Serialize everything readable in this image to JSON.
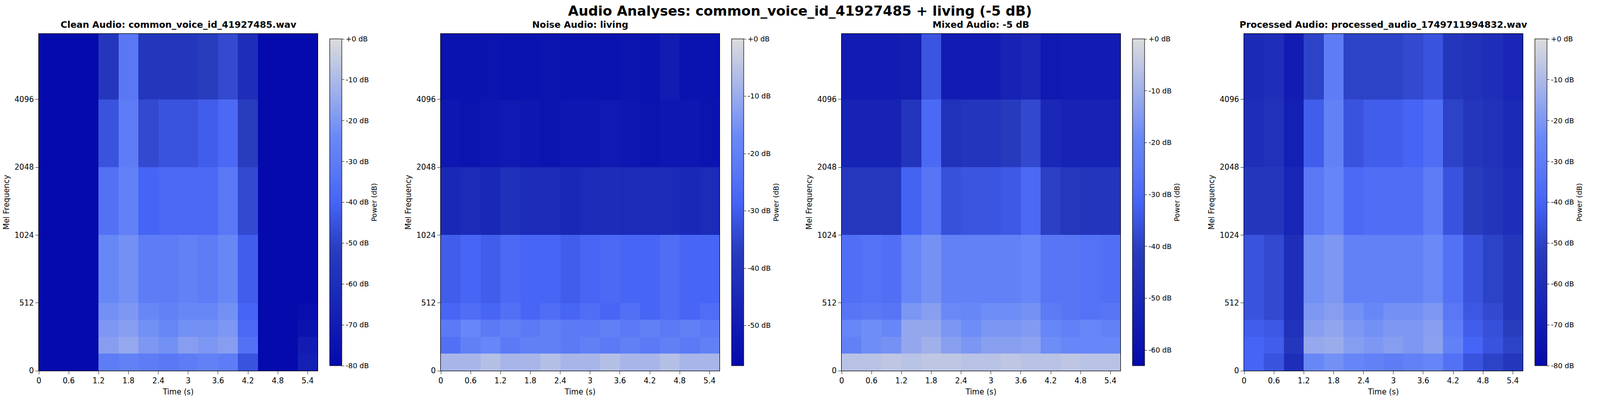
{
  "title": "Audio Analyses: common_voice_id_41927485 + living (-5 dB)",
  "chart_data": [
    {
      "type": "heatmap",
      "title": "Clean Audio: common_voice_id_41927485.wav",
      "x_label": "Time (s)",
      "y_label": "Mel Frequency",
      "color": "Plasma",
      "colorbar_label": "Power (dB)",
      "xlim": [
        0,
        5.6
      ],
      "xticks": [
        0,
        0.6,
        1.2,
        1.8,
        2.4,
        3,
        3.6,
        4.2,
        4.8,
        5.4
      ],
      "ylim": [
        0,
        8000
      ],
      "yticks": [
        0,
        512,
        1024,
        2048,
        4096
      ],
      "x_edges": [
        0,
        0.4,
        0.8,
        1.2,
        1.6,
        2.0,
        2.4,
        2.8,
        3.2,
        3.6,
        4.0,
        4.4,
        4.8,
        5.2,
        5.6
      ],
      "y_edges": [
        0,
        128,
        256,
        384,
        512,
        1024,
        2048,
        4096,
        8000
      ],
      "zlim": [
        -80,
        0
      ],
      "zticks": [
        {
          "value": 0,
          "label": "+0 dB"
        },
        {
          "value": -10,
          "label": "-10 dB"
        },
        {
          "value": -20,
          "label": "-20 dB"
        },
        {
          "value": -30,
          "label": "-30 dB"
        },
        {
          "value": -40,
          "label": "-40 dB"
        },
        {
          "value": -50,
          "label": "-50 dB"
        },
        {
          "value": -60,
          "label": "-60 dB"
        },
        {
          "value": -70,
          "label": "-70 dB"
        },
        {
          "value": -80,
          "label": "-80 dB"
        }
      ],
      "z": [
        [
          -80,
          -80,
          -80,
          -30,
          -28,
          -30,
          -32,
          -30,
          -28,
          -30,
          -45,
          -80,
          -80,
          -68
        ],
        [
          -80,
          -80,
          -80,
          -18,
          -15,
          -20,
          -22,
          -18,
          -20,
          -18,
          -35,
          -80,
          -80,
          -70
        ],
        [
          -80,
          -80,
          -80,
          -20,
          -18,
          -22,
          -25,
          -22,
          -22,
          -20,
          -38,
          -80,
          -80,
          -75
        ],
        [
          -80,
          -80,
          -80,
          -22,
          -20,
          -25,
          -28,
          -25,
          -25,
          -22,
          -40,
          -80,
          -80,
          -78
        ],
        [
          -80,
          -80,
          -80,
          -25,
          -22,
          -30,
          -30,
          -28,
          -30,
          -25,
          -42,
          -80,
          -80,
          -80
        ],
        [
          -80,
          -80,
          -80,
          -35,
          -28,
          -40,
          -38,
          -38,
          -38,
          -32,
          -48,
          -80,
          -80,
          -80
        ],
        [
          -80,
          -80,
          -80,
          -45,
          -30,
          -48,
          -45,
          -45,
          -42,
          -38,
          -52,
          -80,
          -80,
          -80
        ],
        [
          -80,
          -80,
          -80,
          -55,
          -32,
          -55,
          -55,
          -55,
          -52,
          -48,
          -60,
          -80,
          -80,
          -80
        ]
      ]
    },
    {
      "type": "heatmap",
      "title": "Noise Audio: living",
      "x_label": "Time (s)",
      "y_label": "Mel Frequency",
      "color": "Plasma",
      "colorbar_label": "Power (dB)",
      "xlim": [
        0,
        5.6
      ],
      "xticks": [
        0,
        0.6,
        1.2,
        1.8,
        2.4,
        3,
        3.6,
        4.2,
        4.8,
        5.4
      ],
      "ylim": [
        0,
        8000
      ],
      "yticks": [
        0,
        512,
        1024,
        2048,
        4096
      ],
      "x_edges": [
        0,
        0.4,
        0.8,
        1.2,
        1.6,
        2.0,
        2.4,
        2.8,
        3.2,
        3.6,
        4.0,
        4.4,
        4.8,
        5.2,
        5.6
      ],
      "y_edges": [
        0,
        128,
        256,
        384,
        512,
        1024,
        2048,
        4096,
        8000
      ],
      "zlim": [
        -57,
        0
      ],
      "zticks": [
        {
          "value": 0,
          "label": "+0 dB"
        },
        {
          "value": -10,
          "label": "-10 dB"
        },
        {
          "value": -20,
          "label": "-20 dB"
        },
        {
          "value": -30,
          "label": "-30 dB"
        },
        {
          "value": -40,
          "label": "-40 dB"
        },
        {
          "value": -50,
          "label": "-50 dB"
        }
      ],
      "z": [
        [
          -8,
          -8,
          -6,
          -8,
          -8,
          -6,
          -8,
          -8,
          -6,
          -8,
          -8,
          -6,
          -8,
          -8
        ],
        [
          -25,
          -20,
          -18,
          -22,
          -20,
          -20,
          -22,
          -20,
          -22,
          -20,
          -22,
          -20,
          -22,
          -20
        ],
        [
          -22,
          -18,
          -22,
          -20,
          -22,
          -20,
          -22,
          -22,
          -20,
          -22,
          -20,
          -22,
          -20,
          -22
        ],
        [
          -28,
          -26,
          -28,
          -25,
          -28,
          -26,
          -28,
          -26,
          -28,
          -25,
          -28,
          -26,
          -28,
          -26
        ],
        [
          -30,
          -28,
          -30,
          -27,
          -28,
          -28,
          -30,
          -28,
          -27,
          -28,
          -28,
          -26,
          -28,
          -28
        ],
        [
          -45,
          -44,
          -45,
          -42,
          -44,
          -44,
          -45,
          -44,
          -43,
          -44,
          -44,
          -44,
          -45,
          -44
        ],
        [
          -52,
          -53,
          -52,
          -51,
          -52,
          -53,
          -52,
          -52,
          -51,
          -52,
          -53,
          -52,
          -52,
          -53
        ],
        [
          -54,
          -54,
          -53,
          -54,
          -54,
          -53,
          -54,
          -54,
          -54,
          -53,
          -54,
          -50,
          -54,
          -54
        ]
      ]
    },
    {
      "type": "heatmap",
      "title": "Mixed Audio: -5 dB",
      "x_label": "Time (s)",
      "y_label": "Mel Frequency",
      "color": "Plasma",
      "colorbar_label": "Power (dB)",
      "xlim": [
        0,
        5.6
      ],
      "xticks": [
        0,
        0.6,
        1.2,
        1.8,
        2.4,
        3,
        3.6,
        4.2,
        4.8,
        5.4
      ],
      "ylim": [
        0,
        8000
      ],
      "yticks": [
        0,
        512,
        1024,
        2048,
        4096
      ],
      "x_edges": [
        0,
        0.4,
        0.8,
        1.2,
        1.6,
        2.0,
        2.4,
        2.8,
        3.2,
        3.6,
        4.0,
        4.4,
        4.8,
        5.2,
        5.6
      ],
      "y_edges": [
        0,
        128,
        256,
        384,
        512,
        1024,
        2048,
        4096,
        8000
      ],
      "zlim": [
        -63,
        0
      ],
      "zticks": [
        {
          "value": 0,
          "label": "+0 dB"
        },
        {
          "value": -10,
          "label": "-10 dB"
        },
        {
          "value": -20,
          "label": "-20 dB"
        },
        {
          "value": -30,
          "label": "-30 dB"
        },
        {
          "value": -40,
          "label": "-40 dB"
        },
        {
          "value": -50,
          "label": "-50 dB"
        },
        {
          "value": -60,
          "label": "-60 dB"
        }
      ],
      "z": [
        [
          -6,
          -6,
          -5,
          -6,
          -5,
          -5,
          -6,
          -6,
          -5,
          -6,
          -6,
          -5,
          -6,
          -6
        ],
        [
          -22,
          -18,
          -17,
          -12,
          -10,
          -14,
          -16,
          -14,
          -14,
          -13,
          -18,
          -20,
          -20,
          -20
        ],
        [
          -20,
          -18,
          -20,
          -12,
          -12,
          -16,
          -18,
          -16,
          -16,
          -15,
          -20,
          -22,
          -20,
          -22
        ],
        [
          -26,
          -25,
          -26,
          -16,
          -14,
          -19,
          -20,
          -18,
          -18,
          -17,
          -24,
          -26,
          -27,
          -26
        ],
        [
          -28,
          -27,
          -28,
          -20,
          -17,
          -22,
          -22,
          -22,
          -22,
          -20,
          -26,
          -26,
          -27,
          -28
        ],
        [
          -43,
          -43,
          -43,
          -32,
          -26,
          -36,
          -35,
          -35,
          -34,
          -30,
          -40,
          -43,
          -44,
          -44
        ],
        [
          -52,
          -52,
          -52,
          -44,
          -30,
          -46,
          -44,
          -44,
          -42,
          -38,
          -50,
          -52,
          -52,
          -52
        ],
        [
          -55,
          -55,
          -55,
          -54,
          -35,
          -55,
          -55,
          -55,
          -52,
          -50,
          -56,
          -55,
          -55,
          -55
        ]
      ]
    },
    {
      "type": "heatmap",
      "title": "Processed Audio: processed_audio_1749711994832.wav",
      "x_label": "Time (s)",
      "y_label": "Mel Frequency",
      "color": "Plasma",
      "colorbar_label": "Power (dB)",
      "xlim": [
        0,
        5.6
      ],
      "xticks": [
        0,
        0.6,
        1.2,
        1.8,
        2.4,
        3,
        3.6,
        4.2,
        4.8,
        5.4
      ],
      "ylim": [
        0,
        8000
      ],
      "yticks": [
        0,
        512,
        1024,
        2048,
        4096
      ],
      "x_edges": [
        0,
        0.4,
        0.8,
        1.2,
        1.6,
        2.0,
        2.4,
        2.8,
        3.2,
        3.6,
        4.0,
        4.4,
        4.8,
        5.2,
        5.6
      ],
      "y_edges": [
        0,
        128,
        256,
        384,
        512,
        1024,
        2048,
        4096,
        8000
      ],
      "zlim": [
        -80,
        0
      ],
      "zticks": [
        {
          "value": 0,
          "label": "+0 dB"
        },
        {
          "value": -10,
          "label": "-10 dB"
        },
        {
          "value": -20,
          "label": "-20 dB"
        },
        {
          "value": -30,
          "label": "-30 dB"
        },
        {
          "value": -40,
          "label": "-40 dB"
        },
        {
          "value": -50,
          "label": "-50 dB"
        },
        {
          "value": -60,
          "label": "-60 dB"
        },
        {
          "value": -70,
          "label": "-70 dB"
        },
        {
          "value": -80,
          "label": "-80 dB"
        }
      ],
      "z": [
        [
          -40,
          -45,
          -60,
          -25,
          -22,
          -26,
          -28,
          -30,
          -28,
          -26,
          -35,
          -45,
          -50,
          -55
        ],
        [
          -40,
          -42,
          -55,
          -15,
          -14,
          -18,
          -20,
          -18,
          -20,
          -17,
          -28,
          -40,
          -45,
          -50
        ],
        [
          -42,
          -44,
          -58,
          -18,
          -16,
          -20,
          -22,
          -20,
          -20,
          -18,
          -30,
          -42,
          -46,
          -52
        ],
        [
          -45,
          -48,
          -60,
          -20,
          -18,
          -22,
          -25,
          -22,
          -22,
          -20,
          -32,
          -44,
          -48,
          -55
        ],
        [
          -45,
          -48,
          -60,
          -22,
          -20,
          -28,
          -28,
          -28,
          -28,
          -24,
          -35,
          -45,
          -50,
          -55
        ],
        [
          -55,
          -55,
          -65,
          -32,
          -26,
          -38,
          -36,
          -36,
          -36,
          -30,
          -45,
          -52,
          -56,
          -60
        ],
        [
          -60,
          -58,
          -68,
          -42,
          -28,
          -45,
          -42,
          -42,
          -40,
          -36,
          -50,
          -55,
          -58,
          -62
        ],
        [
          -62,
          -60,
          -70,
          -50,
          -30,
          -50,
          -50,
          -50,
          -48,
          -45,
          -55,
          -58,
          -60,
          -65
        ]
      ]
    }
  ]
}
